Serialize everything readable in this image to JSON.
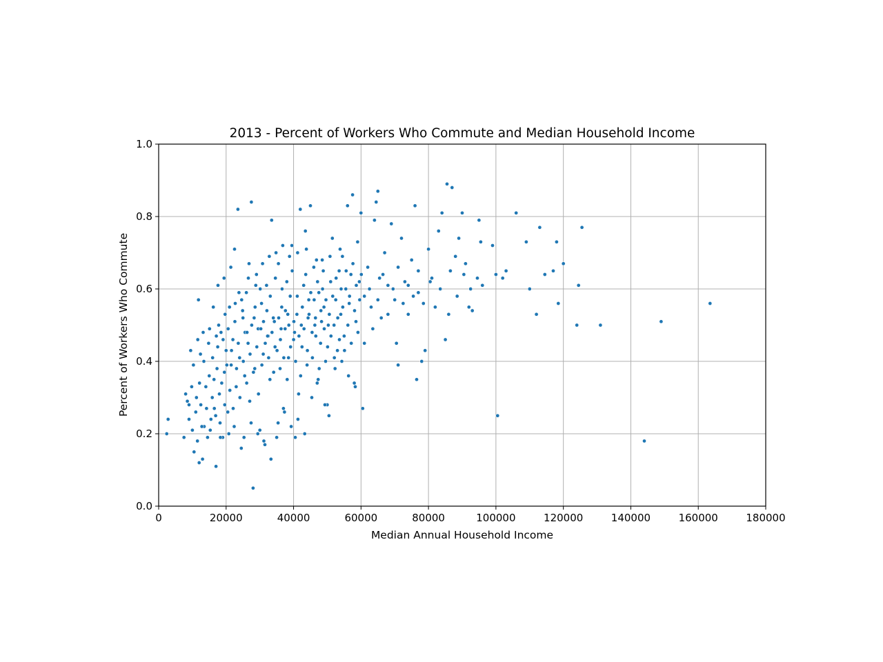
{
  "chart_data": {
    "type": "scatter",
    "title": "2013 - Percent of Workers Who Commute and Median Household Income",
    "xlabel": "Median Annual Household Income",
    "ylabel": "Percent of Workers Who Commute",
    "xlim": [
      0,
      180000
    ],
    "ylim": [
      0.0,
      1.0
    ],
    "xticks": [
      0,
      20000,
      40000,
      60000,
      80000,
      100000,
      120000,
      140000,
      160000,
      180000
    ],
    "xtick_labels": [
      "0",
      "20000",
      "40000",
      "60000",
      "80000",
      "100000",
      "120000",
      "140000",
      "160000",
      "180000"
    ],
    "yticks": [
      0.0,
      0.2,
      0.4,
      0.6,
      0.8,
      1.0
    ],
    "ytick_labels": [
      "0.0",
      "0.2",
      "0.4",
      "0.6",
      "0.8",
      "1.0"
    ],
    "grid": true,
    "marker_color": "#1f77b4",
    "points": [
      [
        2400,
        0.2
      ],
      [
        2800,
        0.24
      ],
      [
        7500,
        0.19
      ],
      [
        8000,
        0.31
      ],
      [
        8500,
        0.29
      ],
      [
        9000,
        0.24
      ],
      [
        9500,
        0.43
      ],
      [
        10000,
        0.21
      ],
      [
        10500,
        0.15
      ],
      [
        11000,
        0.26
      ],
      [
        11500,
        0.18
      ],
      [
        12000,
        0.12
      ],
      [
        12500,
        0.28
      ],
      [
        13000,
        0.13
      ],
      [
        13500,
        0.22
      ],
      [
        14000,
        0.33
      ],
      [
        14500,
        0.19
      ],
      [
        15000,
        0.36
      ],
      [
        15500,
        0.24
      ],
      [
        16000,
        0.41
      ],
      [
        16500,
        0.27
      ],
      [
        17000,
        0.11
      ],
      [
        17500,
        0.44
      ],
      [
        18000,
        0.31
      ],
      [
        18500,
        0.48
      ],
      [
        19000,
        0.19
      ],
      [
        19500,
        0.37
      ],
      [
        20000,
        0.43
      ],
      [
        20500,
        0.26
      ],
      [
        21000,
        0.55
      ],
      [
        21500,
        0.39
      ],
      [
        22000,
        0.46
      ],
      [
        22500,
        0.71
      ],
      [
        23000,
        0.33
      ],
      [
        23500,
        0.82
      ],
      [
        24000,
        0.41
      ],
      [
        24500,
        0.16
      ],
      [
        25000,
        0.52
      ],
      [
        25500,
        0.36
      ],
      [
        26000,
        0.59
      ],
      [
        26500,
        0.45
      ],
      [
        27000,
        0.29
      ],
      [
        27500,
        0.84
      ],
      [
        28000,
        0.05
      ],
      [
        28500,
        0.38
      ],
      [
        29000,
        0.64
      ],
      [
        29500,
        0.49
      ],
      [
        30000,
        0.21
      ],
      [
        30500,
        0.56
      ],
      [
        31000,
        0.42
      ],
      [
        31500,
        0.17
      ],
      [
        32000,
        0.61
      ],
      [
        32500,
        0.47
      ],
      [
        33000,
        0.35
      ],
      [
        33500,
        0.79
      ],
      [
        34000,
        0.52
      ],
      [
        34500,
        0.44
      ],
      [
        35000,
        0.19
      ],
      [
        35500,
        0.67
      ],
      [
        36000,
        0.38
      ],
      [
        36500,
        0.55
      ],
      [
        37000,
        0.27
      ],
      [
        37500,
        0.49
      ],
      [
        38000,
        0.62
      ],
      [
        38500,
        0.41
      ],
      [
        39000,
        0.58
      ],
      [
        39500,
        0.72
      ],
      [
        40000,
        0.46
      ],
      [
        40500,
        0.19
      ],
      [
        41000,
        0.53
      ],
      [
        41500,
        0.31
      ],
      [
        42000,
        0.82
      ],
      [
        42500,
        0.44
      ],
      [
        43000,
        0.61
      ],
      [
        43500,
        0.76
      ],
      [
        44000,
        0.39
      ],
      [
        44500,
        0.57
      ],
      [
        45000,
        0.83
      ],
      [
        45500,
        0.48
      ],
      [
        46000,
        0.66
      ],
      [
        46500,
        0.52
      ],
      [
        47000,
        0.34
      ],
      [
        47500,
        0.59
      ],
      [
        48000,
        0.45
      ],
      [
        48500,
        0.68
      ],
      [
        49000,
        0.55
      ],
      [
        49500,
        0.4
      ],
      [
        50000,
        0.28
      ],
      [
        50500,
        0.25
      ],
      [
        51000,
        0.62
      ],
      [
        51500,
        0.74
      ],
      [
        52000,
        0.5
      ],
      [
        52500,
        0.57
      ],
      [
        53000,
        0.43
      ],
      [
        53500,
        0.65
      ],
      [
        54000,
        0.53
      ],
      [
        54500,
        0.69
      ],
      [
        55000,
        0.47
      ],
      [
        55500,
        0.6
      ],
      [
        56000,
        0.83
      ],
      [
        56500,
        0.56
      ],
      [
        57000,
        0.64
      ],
      [
        57500,
        0.86
      ],
      [
        58000,
        0.34
      ],
      [
        58500,
        0.51
      ],
      [
        59000,
        0.73
      ],
      [
        59500,
        0.62
      ],
      [
        60000,
        0.81
      ],
      [
        60500,
        0.27
      ],
      [
        61000,
        0.58
      ],
      [
        62000,
        0.66
      ],
      [
        63000,
        0.55
      ],
      [
        64000,
        0.79
      ],
      [
        64500,
        0.84
      ],
      [
        65000,
        0.87
      ],
      [
        65500,
        0.63
      ],
      [
        66000,
        0.52
      ],
      [
        67000,
        0.7
      ],
      [
        68000,
        0.61
      ],
      [
        69000,
        0.78
      ],
      [
        70000,
        0.57
      ],
      [
        70500,
        0.45
      ],
      [
        71000,
        0.39
      ],
      [
        72000,
        0.74
      ],
      [
        73000,
        0.62
      ],
      [
        74000,
        0.53
      ],
      [
        75000,
        0.68
      ],
      [
        76000,
        0.83
      ],
      [
        76500,
        0.35
      ],
      [
        77000,
        0.59
      ],
      [
        78000,
        0.4
      ],
      [
        79000,
        0.43
      ],
      [
        80000,
        0.71
      ],
      [
        81000,
        0.63
      ],
      [
        82000,
        0.55
      ],
      [
        83000,
        0.76
      ],
      [
        84000,
        0.81
      ],
      [
        85000,
        0.46
      ],
      [
        85500,
        0.89
      ],
      [
        86000,
        0.53
      ],
      [
        87000,
        0.88
      ],
      [
        88000,
        0.69
      ],
      [
        89000,
        0.74
      ],
      [
        90000,
        0.81
      ],
      [
        91000,
        0.67
      ],
      [
        92000,
        0.55
      ],
      [
        93000,
        0.54
      ],
      [
        95000,
        0.79
      ],
      [
        95500,
        0.73
      ],
      [
        96000,
        0.61
      ],
      [
        99000,
        0.72
      ],
      [
        100000,
        0.64
      ],
      [
        100500,
        0.25
      ],
      [
        102000,
        0.63
      ],
      [
        103000,
        0.65
      ],
      [
        106000,
        0.81
      ],
      [
        109000,
        0.73
      ],
      [
        110000,
        0.6
      ],
      [
        112000,
        0.53
      ],
      [
        113000,
        0.77
      ],
      [
        114500,
        0.64
      ],
      [
        117000,
        0.65
      ],
      [
        118000,
        0.73
      ],
      [
        118500,
        0.56
      ],
      [
        120000,
        0.67
      ],
      [
        124000,
        0.5
      ],
      [
        124500,
        0.61
      ],
      [
        125500,
        0.77
      ],
      [
        131000,
        0.5
      ],
      [
        144000,
        0.18
      ],
      [
        149000,
        0.51
      ],
      [
        163500,
        0.56
      ],
      [
        9000,
        0.28
      ],
      [
        9800,
        0.33
      ],
      [
        10300,
        0.39
      ],
      [
        11200,
        0.3
      ],
      [
        12100,
        0.34
      ],
      [
        12800,
        0.22
      ],
      [
        13400,
        0.4
      ],
      [
        14200,
        0.27
      ],
      [
        14800,
        0.45
      ],
      [
        15300,
        0.21
      ],
      [
        15900,
        0.3
      ],
      [
        16400,
        0.35
      ],
      [
        16900,
        0.25
      ],
      [
        17300,
        0.38
      ],
      [
        17800,
        0.5
      ],
      [
        18200,
        0.23
      ],
      [
        18700,
        0.34
      ],
      [
        19100,
        0.46
      ],
      [
        19600,
        0.28
      ],
      [
        20200,
        0.39
      ],
      [
        20600,
        0.49
      ],
      [
        21100,
        0.32
      ],
      [
        21600,
        0.43
      ],
      [
        22100,
        0.27
      ],
      [
        22600,
        0.51
      ],
      [
        23100,
        0.38
      ],
      [
        23600,
        0.45
      ],
      [
        24100,
        0.3
      ],
      [
        24600,
        0.57
      ],
      [
        25100,
        0.4
      ],
      [
        25600,
        0.48
      ],
      [
        26100,
        0.34
      ],
      [
        26600,
        0.63
      ],
      [
        27100,
        0.42
      ],
      [
        27600,
        0.5
      ],
      [
        28100,
        0.37
      ],
      [
        28600,
        0.55
      ],
      [
        29100,
        0.44
      ],
      [
        29600,
        0.31
      ],
      [
        30100,
        0.6
      ],
      [
        30600,
        0.39
      ],
      [
        31100,
        0.51
      ],
      [
        31600,
        0.45
      ],
      [
        32100,
        0.54
      ],
      [
        32600,
        0.41
      ],
      [
        33100,
        0.58
      ],
      [
        33600,
        0.48
      ],
      [
        34100,
        0.37
      ],
      [
        34600,
        0.63
      ],
      [
        35100,
        0.43
      ],
      [
        35600,
        0.52
      ],
      [
        36100,
        0.46
      ],
      [
        36600,
        0.6
      ],
      [
        37100,
        0.41
      ],
      [
        37600,
        0.54
      ],
      [
        38100,
        0.35
      ],
      [
        38600,
        0.5
      ],
      [
        39100,
        0.44
      ],
      [
        39600,
        0.65
      ],
      [
        40100,
        0.51
      ],
      [
        40600,
        0.4
      ],
      [
        41100,
        0.58
      ],
      [
        41600,
        0.47
      ],
      [
        42100,
        0.36
      ],
      [
        42600,
        0.55
      ],
      [
        43100,
        0.49
      ],
      [
        43600,
        0.64
      ],
      [
        44100,
        0.43
      ],
      [
        44600,
        0.53
      ],
      [
        45100,
        0.59
      ],
      [
        45600,
        0.41
      ],
      [
        46100,
        0.57
      ],
      [
        46600,
        0.47
      ],
      [
        47100,
        0.62
      ],
      [
        47600,
        0.38
      ],
      [
        48100,
        0.54
      ],
      [
        48600,
        0.6
      ],
      [
        49100,
        0.49
      ],
      [
        49600,
        0.57
      ],
      [
        50100,
        0.44
      ],
      [
        50600,
        0.53
      ],
      [
        51100,
        0.47
      ],
      [
        51600,
        0.58
      ],
      [
        52100,
        0.41
      ],
      [
        52600,
        0.63
      ],
      [
        53100,
        0.52
      ],
      [
        53600,
        0.46
      ],
      [
        54100,
        0.6
      ],
      [
        54600,
        0.55
      ],
      [
        55100,
        0.43
      ],
      [
        55600,
        0.65
      ],
      [
        56100,
        0.5
      ],
      [
        56600,
        0.58
      ],
      [
        57100,
        0.45
      ],
      [
        57600,
        0.67
      ],
      [
        58100,
        0.54
      ],
      [
        58600,
        0.61
      ],
      [
        59100,
        0.48
      ],
      [
        59600,
        0.57
      ],
      [
        60100,
        0.64
      ],
      [
        61000,
        0.45
      ],
      [
        62500,
        0.6
      ],
      [
        63500,
        0.49
      ],
      [
        65000,
        0.57
      ],
      [
        66500,
        0.64
      ],
      [
        68000,
        0.53
      ],
      [
        69500,
        0.6
      ],
      [
        71000,
        0.66
      ],
      [
        72500,
        0.56
      ],
      [
        74000,
        0.61
      ],
      [
        75500,
        0.58
      ],
      [
        77000,
        0.65
      ],
      [
        78500,
        0.56
      ],
      [
        80500,
        0.62
      ],
      [
        83500,
        0.6
      ],
      [
        86500,
        0.65
      ],
      [
        88500,
        0.58
      ],
      [
        90500,
        0.64
      ],
      [
        92500,
        0.6
      ],
      [
        94500,
        0.63
      ],
      [
        11800,
        0.57
      ],
      [
        12400,
        0.42
      ],
      [
        16200,
        0.55
      ],
      [
        17600,
        0.61
      ],
      [
        19400,
        0.63
      ],
      [
        21400,
        0.66
      ],
      [
        23800,
        0.59
      ],
      [
        26800,
        0.67
      ],
      [
        28800,
        0.61
      ],
      [
        30800,
        0.67
      ],
      [
        32800,
        0.69
      ],
      [
        34800,
        0.7
      ],
      [
        36800,
        0.72
      ],
      [
        38800,
        0.69
      ],
      [
        41200,
        0.7
      ],
      [
        43800,
        0.71
      ],
      [
        46800,
        0.68
      ],
      [
        48800,
        0.65
      ],
      [
        50800,
        0.69
      ],
      [
        53800,
        0.71
      ],
      [
        18300,
        0.19
      ],
      [
        20800,
        0.2
      ],
      [
        22400,
        0.22
      ],
      [
        25300,
        0.19
      ],
      [
        27400,
        0.23
      ],
      [
        29400,
        0.2
      ],
      [
        31200,
        0.18
      ],
      [
        33300,
        0.13
      ],
      [
        35400,
        0.23
      ],
      [
        37300,
        0.26
      ],
      [
        39300,
        0.22
      ],
      [
        41300,
        0.24
      ],
      [
        43300,
        0.2
      ],
      [
        45400,
        0.3
      ],
      [
        47300,
        0.35
      ],
      [
        49300,
        0.28
      ],
      [
        52300,
        0.38
      ],
      [
        54300,
        0.4
      ],
      [
        56300,
        0.36
      ],
      [
        58300,
        0.33
      ],
      [
        11600,
        0.46
      ],
      [
        13200,
        0.48
      ],
      [
        15100,
        0.49
      ],
      [
        17100,
        0.47
      ],
      [
        19700,
        0.53
      ],
      [
        22700,
        0.56
      ],
      [
        24900,
        0.54
      ],
      [
        26200,
        0.48
      ],
      [
        28300,
        0.52
      ],
      [
        30300,
        0.49
      ],
      [
        32300,
        0.47
      ],
      [
        34300,
        0.51
      ],
      [
        36300,
        0.49
      ],
      [
        38300,
        0.53
      ],
      [
        40300,
        0.48
      ],
      [
        42300,
        0.5
      ],
      [
        44300,
        0.52
      ],
      [
        46300,
        0.5
      ],
      [
        48300,
        0.51
      ],
      [
        50300,
        0.5
      ]
    ]
  }
}
